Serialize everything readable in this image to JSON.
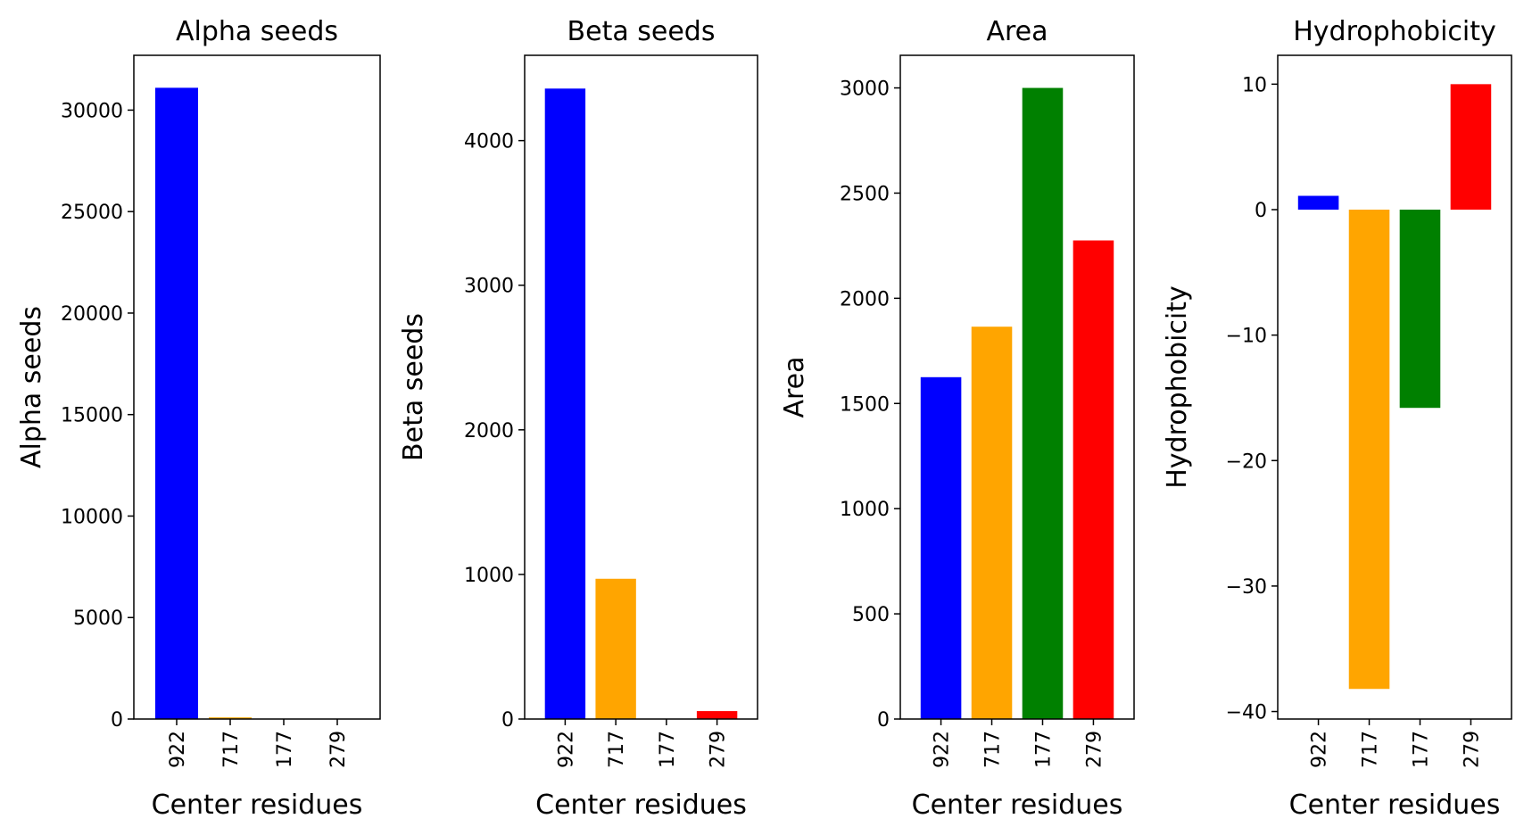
{
  "chart_data": [
    {
      "type": "bar",
      "title": "Alpha seeds",
      "xlabel": "Center residues",
      "ylabel": "Alpha seeds",
      "categories": [
        "922",
        "717",
        "177",
        "279"
      ],
      "values": [
        31100,
        80,
        0,
        0
      ],
      "colors": [
        "#0000ff",
        "#ffa500",
        "#008000",
        "#ff0000"
      ],
      "ylim": [
        0,
        32700
      ],
      "yticks": [
        0,
        5000,
        10000,
        15000,
        20000,
        25000,
        30000
      ],
      "ytick_labels": [
        "0",
        "5000",
        "10000",
        "15000",
        "20000",
        "25000",
        "30000"
      ]
    },
    {
      "type": "bar",
      "title": "Beta seeds",
      "xlabel": "Center residues",
      "ylabel": "Beta seeds",
      "categories": [
        "922",
        "717",
        "177",
        "279"
      ],
      "values": [
        4360,
        970,
        0,
        55
      ],
      "colors": [
        "#0000ff",
        "#ffa500",
        "#008000",
        "#ff0000"
      ],
      "ylim": [
        0,
        4590
      ],
      "yticks": [
        0,
        1000,
        2000,
        3000,
        4000
      ],
      "ytick_labels": [
        "0",
        "1000",
        "2000",
        "3000",
        "4000"
      ]
    },
    {
      "type": "bar",
      "title": "Area",
      "xlabel": "Center residues",
      "ylabel": "Area",
      "categories": [
        "922",
        "717",
        "177",
        "279"
      ],
      "values": [
        1625,
        1865,
        3000,
        2275
      ],
      "colors": [
        "#0000ff",
        "#ffa500",
        "#008000",
        "#ff0000"
      ],
      "ylim": [
        0,
        3155
      ],
      "yticks": [
        0,
        500,
        1000,
        1500,
        2000,
        2500,
        3000
      ],
      "ytick_labels": [
        "0",
        "500",
        "1000",
        "1500",
        "2000",
        "2500",
        "3000"
      ]
    },
    {
      "type": "bar",
      "title": "Hydrophobicity",
      "xlabel": "Center residues",
      "ylabel": "Hydrophobicity",
      "categories": [
        "922",
        "717",
        "177",
        "279"
      ],
      "values": [
        1.1,
        -38.2,
        -15.8,
        10.0
      ],
      "colors": [
        "#0000ff",
        "#ffa500",
        "#008000",
        "#ff0000"
      ],
      "ylim": [
        -40.6,
        12.3
      ],
      "yticks": [
        -40,
        -30,
        -20,
        -10,
        0,
        10
      ],
      "ytick_labels": [
        "−40",
        "−30",
        "−20",
        "−10",
        "0",
        "10"
      ]
    }
  ]
}
